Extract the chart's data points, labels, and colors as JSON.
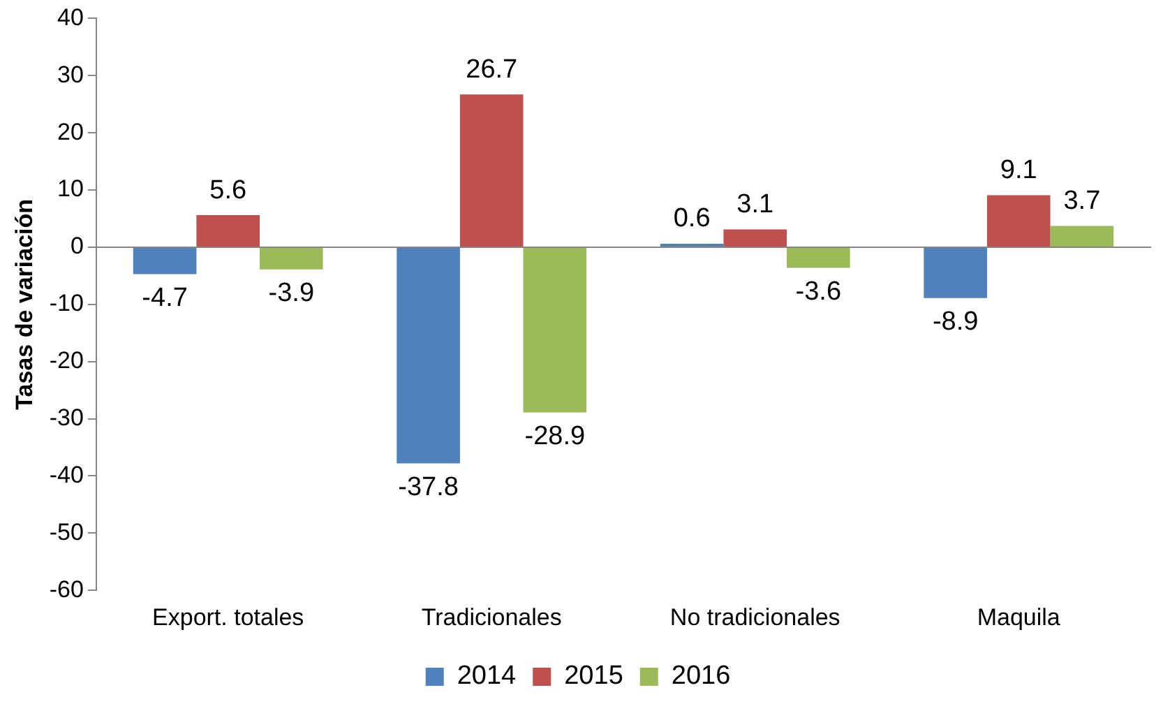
{
  "chart_data": {
    "type": "bar",
    "ylabel": "Tasas de variación",
    "categories": [
      "Export. totales",
      "Tradicionales",
      "No tradicionales",
      "Maquila"
    ],
    "series": [
      {
        "name": "2014",
        "color": "#4f81bd",
        "values": [
          -4.7,
          -37.8,
          0.6,
          -8.9
        ]
      },
      {
        "name": "2015",
        "color": "#c0504d",
        "values": [
          5.6,
          26.7,
          3.1,
          9.1
        ]
      },
      {
        "name": "2016",
        "color": "#9bbb59",
        "values": [
          -3.9,
          -28.9,
          -3.6,
          3.7
        ]
      }
    ],
    "ylim": [
      -60,
      40
    ],
    "yticks": [
      -60,
      -50,
      -40,
      -30,
      -20,
      -10,
      0,
      10,
      20,
      30,
      40
    ],
    "legend": "bottom",
    "data_labels": true
  }
}
